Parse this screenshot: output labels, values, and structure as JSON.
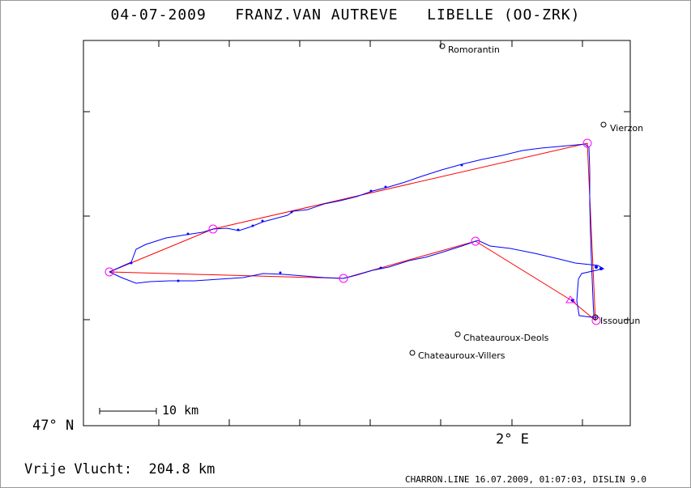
{
  "header": {
    "date": "04-07-2009",
    "pilot": "FRANZ.VAN AUTREVE",
    "glider": "LIBELLE (OO-ZRK)"
  },
  "axes": {
    "lat_label": "47° N",
    "lon_label": "2° E"
  },
  "scale_bar": {
    "label": "10 km"
  },
  "places": [
    {
      "key": "romorantin",
      "name": "Romorantin"
    },
    {
      "key": "vierzon",
      "name": "Vierzon"
    },
    {
      "key": "issoudun",
      "name": "Issoudun"
    },
    {
      "key": "chateauroux_deols",
      "name": "Chateauroux-Deols"
    },
    {
      "key": "chateauroux_villers",
      "name": "Chateauroux-Villers"
    }
  ],
  "footer": {
    "distance_text": "Vrije Vlucht:  204.8 km",
    "credits": "CHARRON.LINE 16.07.2009, 01:07:03, DISLIN 9.0"
  },
  "colors": {
    "track": "#0000ff",
    "task": "#ff0000",
    "turnpoint": "#ff00ff",
    "axes": "#000000"
  }
}
